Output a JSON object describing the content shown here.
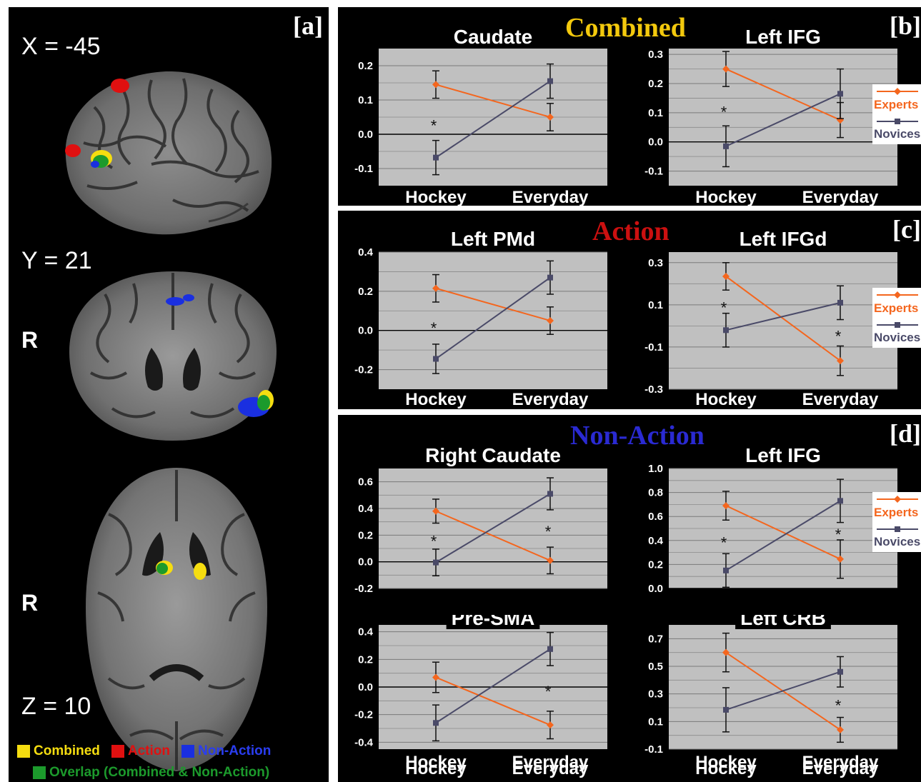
{
  "panels": {
    "a": {
      "letter": "[a]",
      "coords": [
        "X = -45",
        "Y = 21",
        "Z = 10"
      ],
      "r_label": "R",
      "legend": [
        {
          "label": "Combined",
          "color": "#f5dd10"
        },
        {
          "label": "Action",
          "color": "#e01010"
        },
        {
          "label": "Non-Action",
          "color": "#1a2fe0"
        },
        {
          "label": "Overlap (Combined & Non-Action)",
          "color": "#1c9a2c"
        }
      ]
    },
    "b": {
      "letter": "[b]",
      "title": "Combined",
      "title_color": "#f3c90d"
    },
    "c": {
      "letter": "[c]",
      "title": "Action",
      "title_color": "#cc1010"
    },
    "d": {
      "letter": "[d]",
      "title": "Non-Action",
      "title_color": "#2a2ad2"
    }
  },
  "legend": {
    "experts": "Experts",
    "novices": "Novices",
    "experts_color": "#f4661e",
    "novices_color": "#4a4a68"
  },
  "chart_data": [
    {
      "type": "line",
      "panel": "b",
      "title": "Caudate",
      "categories": [
        "Hockey",
        "Everyday"
      ],
      "ylim": [
        -0.15,
        0.25
      ],
      "yticks": [
        -0.1,
        0.0,
        0.1,
        0.2
      ],
      "ytick_labels": [
        "-0.1",
        "0.0",
        "0.1",
        "0.2"
      ],
      "series": [
        {
          "name": "Experts",
          "values": [
            0.145,
            0.05
          ],
          "err": [
            0.04,
            0.04
          ]
        },
        {
          "name": "Novices",
          "values": [
            -0.068,
            0.155
          ],
          "err": [
            0.05,
            0.05
          ]
        }
      ],
      "significance": [
        "*",
        ""
      ]
    },
    {
      "type": "line",
      "panel": "b",
      "title": "Left IFG",
      "categories": [
        "Hockey",
        "Everyday"
      ],
      "ylim": [
        -0.15,
        0.32
      ],
      "yticks": [
        -0.1,
        0.0,
        0.1,
        0.2,
        0.3
      ],
      "ytick_labels": [
        "-0.1",
        "0.0",
        "0.1",
        "0.2",
        "0.3"
      ],
      "series": [
        {
          "name": "Experts",
          "values": [
            0.25,
            0.075
          ],
          "err": [
            0.06,
            0.06
          ]
        },
        {
          "name": "Novices",
          "values": [
            -0.015,
            0.165
          ],
          "err": [
            0.07,
            0.085
          ]
        }
      ],
      "significance": [
        "*",
        ""
      ],
      "show_legend": true
    },
    {
      "type": "line",
      "panel": "c",
      "title": "Left PMd",
      "categories": [
        "Hockey",
        "Everyday"
      ],
      "ylim": [
        -0.3,
        0.4
      ],
      "yticks": [
        -0.2,
        0.0,
        0.2,
        0.4
      ],
      "ytick_labels": [
        "-0.2",
        "0.0",
        "0.2",
        "0.4"
      ],
      "series": [
        {
          "name": "Experts",
          "values": [
            0.215,
            0.05
          ],
          "err": [
            0.07,
            0.07
          ]
        },
        {
          "name": "Novices",
          "values": [
            -0.145,
            0.27
          ],
          "err": [
            0.075,
            0.085
          ]
        }
      ],
      "significance": [
        "*",
        ""
      ]
    },
    {
      "type": "line",
      "panel": "c",
      "title": "Left IFGd",
      "categories": [
        "Hockey",
        "Everyday"
      ],
      "ylim": [
        -0.3,
        0.35
      ],
      "yticks": [
        -0.3,
        -0.1,
        0.1,
        0.3
      ],
      "ytick_labels": [
        "-0.3",
        "-0.1",
        "0.1",
        "0.3"
      ],
      "series": [
        {
          "name": "Experts",
          "values": [
            0.235,
            -0.165
          ],
          "err": [
            0.065,
            0.07
          ]
        },
        {
          "name": "Novices",
          "values": [
            -0.02,
            0.11
          ],
          "err": [
            0.08,
            0.08
          ]
        }
      ],
      "significance": [
        "*",
        "*"
      ],
      "show_legend": true
    },
    {
      "type": "line",
      "panel": "d",
      "title": "Right Caudate",
      "categories": [
        "Hockey",
        "Everyday"
      ],
      "ylim": [
        -0.2,
        0.7
      ],
      "yticks": [
        -0.2,
        0.0,
        0.2,
        0.4,
        0.6
      ],
      "ytick_labels": [
        "-0.2",
        "0.0",
        "0.2",
        "0.4",
        "0.6"
      ],
      "series": [
        {
          "name": "Experts",
          "values": [
            0.38,
            0.01
          ],
          "err": [
            0.09,
            0.1
          ]
        },
        {
          "name": "Novices",
          "values": [
            -0.005,
            0.51
          ],
          "err": [
            0.1,
            0.12
          ]
        }
      ],
      "significance": [
        "*",
        "*"
      ]
    },
    {
      "type": "line",
      "panel": "d",
      "title": "Left IFG",
      "categories": [
        "Hockey",
        "Everyday"
      ],
      "ylim": [
        0.0,
        1.0
      ],
      "yticks": [
        0.0,
        0.2,
        0.4,
        0.6,
        0.8,
        1.0
      ],
      "ytick_labels": [
        "0.0",
        "0.2",
        "0.4",
        "0.6",
        "0.8",
        "1.0"
      ],
      "series": [
        {
          "name": "Experts",
          "values": [
            0.69,
            0.245
          ],
          "err": [
            0.12,
            0.16
          ]
        },
        {
          "name": "Novices",
          "values": [
            0.15,
            0.73
          ],
          "err": [
            0.14,
            0.18
          ]
        }
      ],
      "significance": [
        "*",
        "*"
      ],
      "show_legend": true
    },
    {
      "type": "line",
      "panel": "d",
      "title": "Pre-SMA",
      "categories": [
        "Hockey",
        "Everyday"
      ],
      "ylim": [
        -0.45,
        0.45
      ],
      "yticks": [
        -0.4,
        -0.2,
        0.0,
        0.2,
        0.4
      ],
      "ytick_labels": [
        "-0.4",
        "-0.2",
        "0.0",
        "0.2",
        "0.4"
      ],
      "series": [
        {
          "name": "Experts",
          "values": [
            0.07,
            -0.275
          ],
          "err": [
            0.11,
            0.1
          ]
        },
        {
          "name": "Novices",
          "values": [
            -0.26,
            0.275
          ],
          "err": [
            0.13,
            0.12
          ]
        }
      ],
      "significance": [
        "",
        "*"
      ]
    },
    {
      "type": "line",
      "panel": "d",
      "title": "Left CRB",
      "categories": [
        "Hockey",
        "Everyday"
      ],
      "ylim": [
        -0.1,
        0.8
      ],
      "yticks": [
        -0.1,
        0.1,
        0.3,
        0.5,
        0.7
      ],
      "ytick_labels": [
        "-0.1",
        "0.1",
        "0.3",
        "0.5",
        "0.7"
      ],
      "series": [
        {
          "name": "Experts",
          "values": [
            0.6,
            0.04
          ],
          "err": [
            0.14,
            0.09
          ]
        },
        {
          "name": "Novices",
          "values": [
            0.185,
            0.46
          ],
          "err": [
            0.16,
            0.11
          ]
        }
      ],
      "significance": [
        "",
        "*"
      ]
    }
  ]
}
